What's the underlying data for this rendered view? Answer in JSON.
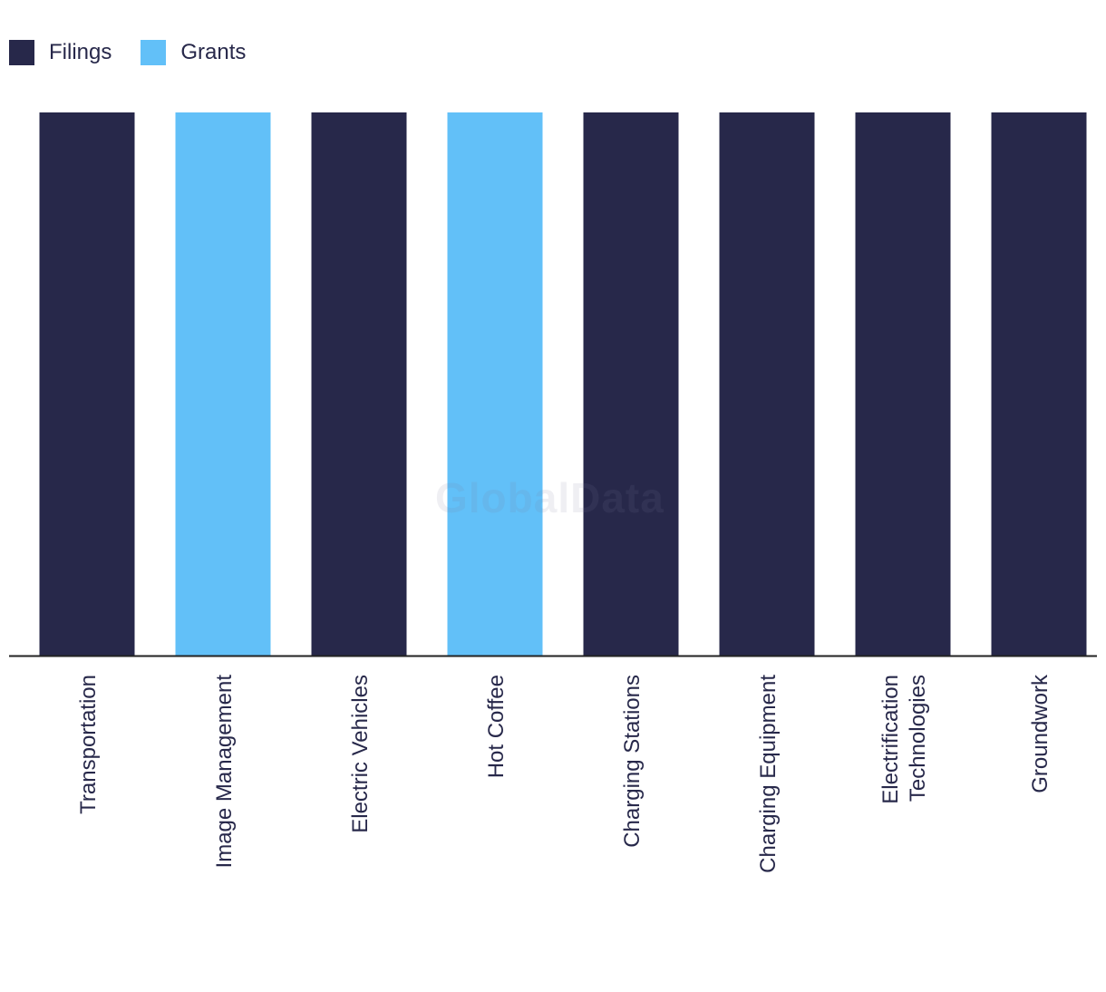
{
  "legend": {
    "items": [
      {
        "label": "Filings",
        "color": "#27284a"
      },
      {
        "label": "Grants",
        "color": "#62c0f8"
      }
    ]
  },
  "watermark": "GlobalData",
  "chart_data": {
    "type": "bar",
    "title": "",
    "xlabel": "",
    "ylabel": "",
    "categories": [
      "Transportation",
      "Image Management",
      "Electric Vehicles",
      "Hot Coffee",
      "Charging Stations",
      "Charging Equipment",
      "Electrification Technologies",
      "Groundwork"
    ],
    "category_lines": [
      [
        "Transportation"
      ],
      [
        "Image Management"
      ],
      [
        "Electric Vehicles"
      ],
      [
        "Hot Coffee"
      ],
      [
        "Charging Stations"
      ],
      [
        "Charging Equipment"
      ],
      [
        "Electrification",
        "Technologies"
      ],
      [
        "Groundwork"
      ]
    ],
    "values": [
      1,
      1,
      1,
      1,
      1,
      1,
      1,
      1
    ],
    "bar_type": [
      "Filings",
      "Grants",
      "Filings",
      "Grants",
      "Filings",
      "Filings",
      "Filings",
      "Filings"
    ],
    "ylim": [
      0,
      1
    ],
    "grid": false,
    "legend_position": "top-left"
  }
}
